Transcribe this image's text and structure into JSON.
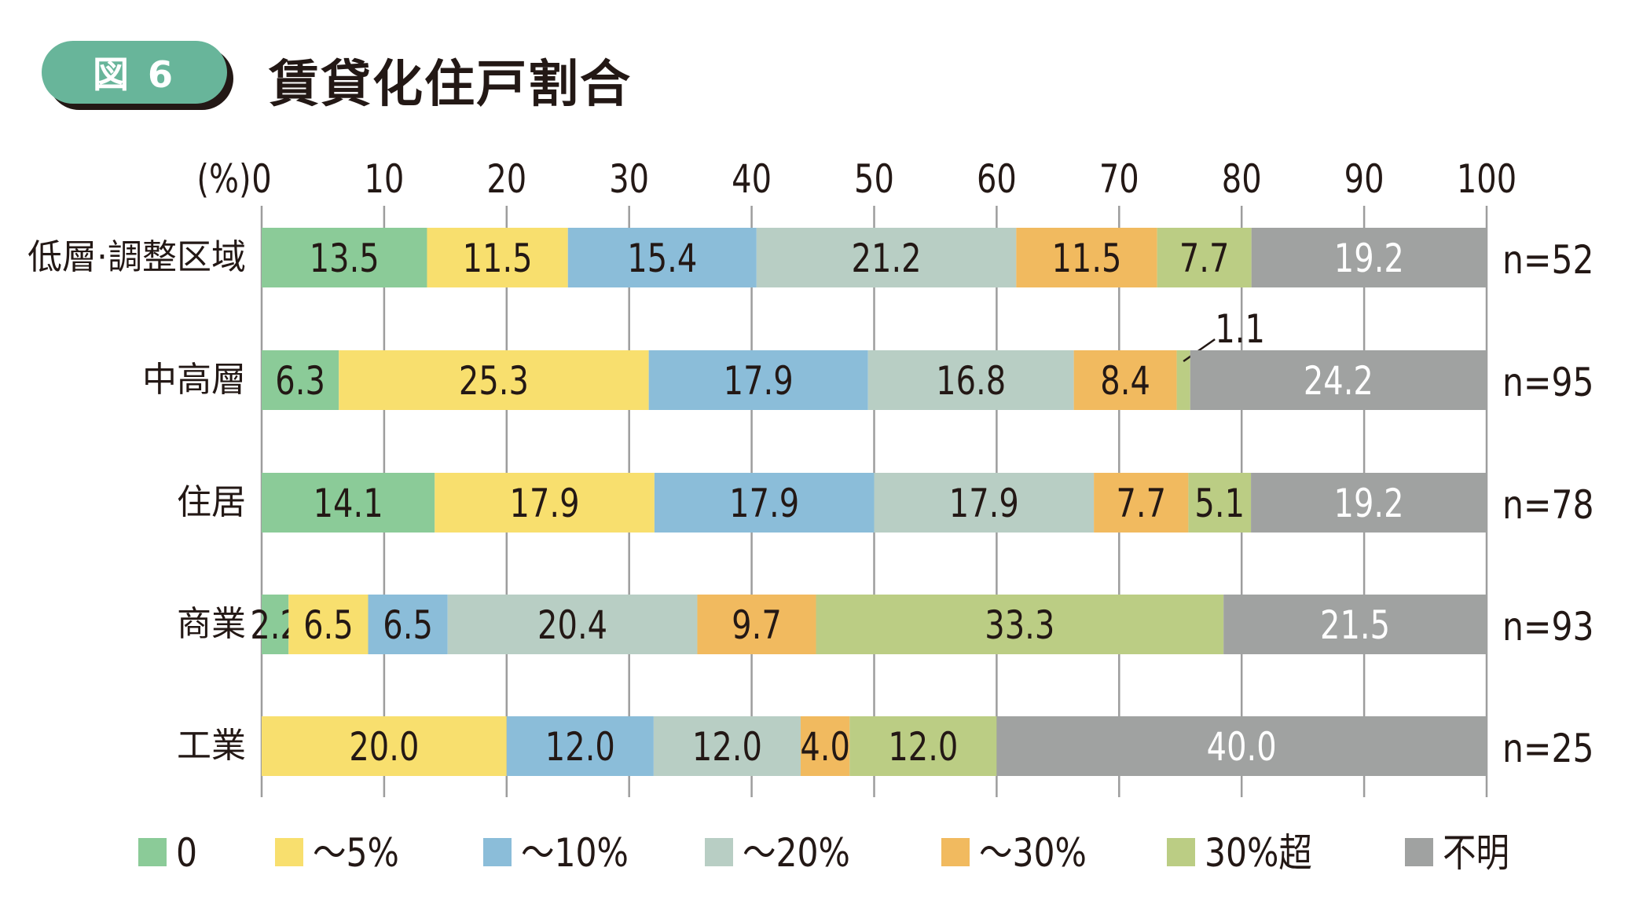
{
  "header": {
    "badge": "図 6",
    "title": "賃貸化住戸割合"
  },
  "chart_data": {
    "type": "bar",
    "orientation": "horizontal",
    "stacked": true,
    "title": "賃貸化住戸割合",
    "xlabel": "(%)",
    "xlim": [
      0,
      100
    ],
    "xticks": [
      "0",
      "10",
      "20",
      "30",
      "40",
      "50",
      "60",
      "70",
      "80",
      "90",
      "100"
    ],
    "grid": true,
    "legend_position": "bottom",
    "categories": [
      "低層·調整区域",
      "中高層",
      "住居",
      "商業",
      "工業"
    ],
    "n_labels": [
      "n=52",
      "n=95",
      "n=78",
      "n=93",
      "n=25"
    ],
    "series": [
      {
        "name": "0",
        "color": "#8BCB98",
        "values": [
          13.5,
          6.3,
          14.1,
          2.2,
          0
        ],
        "labels": [
          "13.5",
          "6.3",
          "14.1",
          "2.2",
          ""
        ]
      },
      {
        "name": "～5%",
        "color": "#F8DF6E",
        "values": [
          11.5,
          25.3,
          17.9,
          6.5,
          20.0
        ],
        "labels": [
          "11.5",
          "25.3",
          "17.9",
          "6.5",
          "20.0"
        ]
      },
      {
        "name": "～10%",
        "color": "#8BBDD9",
        "values": [
          15.4,
          17.9,
          17.9,
          6.5,
          12.0
        ],
        "labels": [
          "15.4",
          "17.9",
          "17.9",
          "6.5",
          "12.0"
        ]
      },
      {
        "name": "～20%",
        "color": "#B8CEC4",
        "values": [
          21.2,
          16.8,
          17.9,
          20.4,
          12.0
        ],
        "labels": [
          "21.2",
          "16.8",
          "17.9",
          "20.4",
          "12.0"
        ]
      },
      {
        "name": "～30%",
        "color": "#F1BA5F",
        "values": [
          11.5,
          8.4,
          7.7,
          9.7,
          4.0
        ],
        "labels": [
          "11.5",
          "8.4",
          "7.7",
          "9.7",
          "4.0"
        ]
      },
      {
        "name": "30%超",
        "color": "#BBCD84",
        "values": [
          7.7,
          1.1,
          5.1,
          33.3,
          12.0
        ],
        "labels": [
          "7.7",
          "1.1",
          "5.1",
          "33.3",
          "12.0"
        ]
      },
      {
        "name": "不明",
        "color": "#A0A2A1",
        "values": [
          19.2,
          24.2,
          19.2,
          21.5,
          40.0
        ],
        "labels": [
          "19.2",
          "24.2",
          "19.2",
          "21.5",
          "40.0"
        ]
      }
    ]
  }
}
